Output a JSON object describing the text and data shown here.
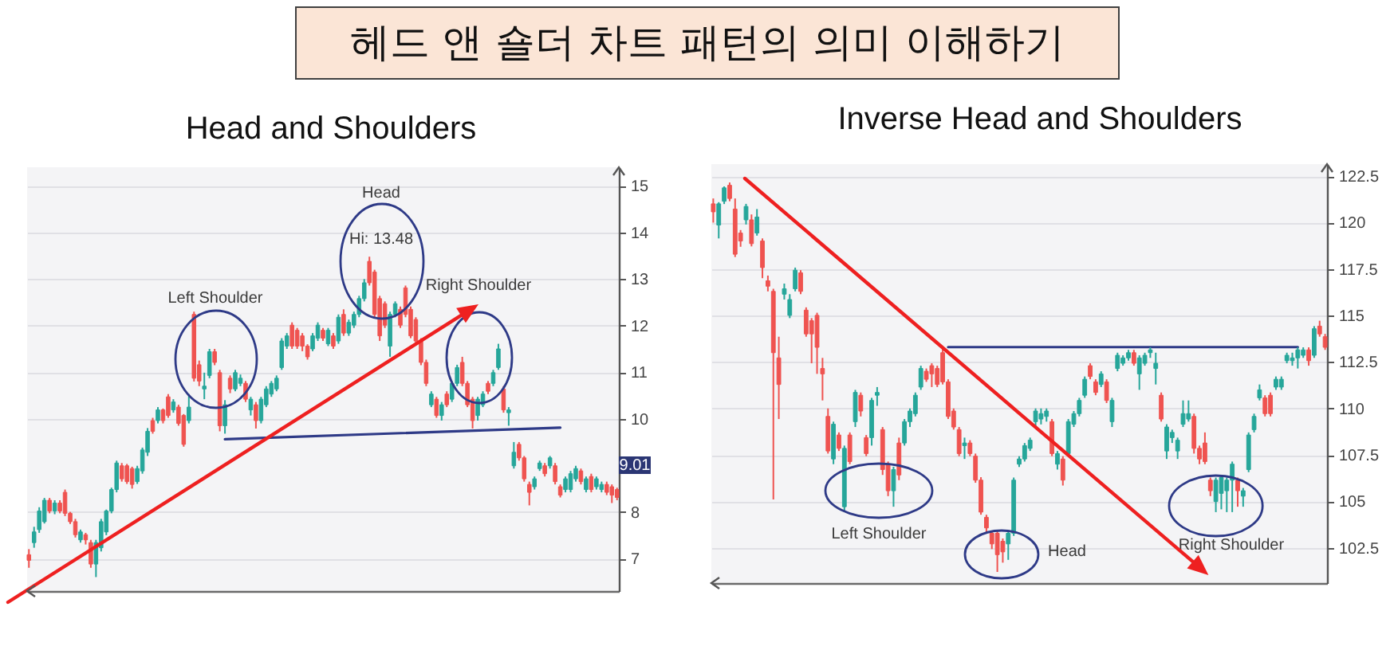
{
  "chart_data": [
    {
      "type": "other",
      "title": "헤드 앤 숄더 차트 패턴의 의미 이해하기"
    },
    {
      "type": "candlestick",
      "title": "Head and Shoulders",
      "categories": [
        null,
        null,
        null,
        null,
        null,
        null,
        null,
        null,
        null,
        null,
        null,
        null,
        null,
        null,
        null,
        null,
        null,
        null,
        null,
        null,
        null,
        null,
        null,
        null,
        null,
        null,
        null,
        null,
        null,
        null,
        null,
        null,
        null,
        null,
        null,
        null,
        null,
        null,
        null,
        null,
        null,
        null,
        null,
        null,
        null,
        null,
        null,
        null,
        null,
        null,
        null,
        null,
        null,
        null,
        null,
        null,
        null,
        null,
        null,
        null,
        null,
        null,
        null,
        null,
        null,
        null,
        null,
        null,
        null,
        null,
        null,
        null,
        null,
        null,
        null,
        null,
        null,
        null,
        null,
        null,
        null,
        null,
        null,
        null,
        null,
        null,
        null,
        null,
        null,
        null,
        null,
        null,
        null,
        null,
        null,
        null,
        null,
        null,
        null,
        null,
        null,
        null,
        null,
        null,
        null,
        null,
        null,
        null,
        null,
        null,
        null,
        null,
        null,
        null,
        null
      ],
      "ohlc": [
        [
          7.08,
          7.2,
          6.8,
          6.96
        ],
        [
          7.34,
          7.68,
          7.23,
          7.57
        ],
        [
          7.62,
          8.1,
          7.55,
          8.02
        ],
        [
          7.79,
          8.3,
          7.75,
          8.25
        ],
        [
          8.25,
          8.3,
          7.97,
          8.02
        ],
        [
          8.02,
          8.25,
          7.95,
          8.19
        ],
        [
          8.19,
          8.25,
          7.97,
          8.02
        ],
        [
          8.42,
          8.48,
          7.91,
          7.97
        ],
        [
          7.97,
          8.0,
          7.74,
          7.79
        ],
        [
          7.79,
          7.85,
          7.45,
          7.51
        ],
        [
          7.4,
          7.62,
          7.34,
          7.57
        ],
        [
          7.51,
          7.55,
          7.3,
          7.4
        ],
        [
          7.34,
          7.4,
          6.8,
          6.88
        ],
        [
          6.88,
          7.4,
          6.6,
          7.34
        ],
        [
          7.23,
          7.85,
          7.15,
          7.79
        ],
        [
          7.57,
          8.05,
          7.5,
          8.02
        ],
        [
          8.02,
          8.52,
          7.97,
          8.48
        ],
        [
          8.48,
          9.1,
          8.42,
          9.05
        ],
        [
          8.99,
          9.05,
          8.65,
          8.71
        ],
        [
          8.99,
          9.03,
          8.6,
          8.65
        ],
        [
          8.93,
          8.97,
          8.5,
          8.59
        ],
        [
          8.65,
          8.99,
          8.6,
          8.93
        ],
        [
          8.88,
          9.38,
          8.82,
          9.33
        ],
        [
          9.28,
          9.8,
          9.2,
          9.73
        ],
        [
          9.96,
          10.02,
          9.68,
          9.73
        ],
        [
          9.96,
          10.25,
          9.9,
          10.19
        ],
        [
          10.19,
          10.22,
          9.9,
          9.96
        ],
        [
          10.47,
          10.53,
          10.02,
          10.07
        ],
        [
          10.19,
          10.42,
          10.13,
          10.36
        ],
        [
          10.25,
          10.3,
          9.85,
          9.9
        ],
        [
          10.07,
          10.1,
          9.4,
          9.45
        ],
        [
          9.96,
          10.53,
          9.9,
          10.25
        ],
        [
          12.24,
          12.3,
          10.8,
          10.87
        ],
        [
          11.16,
          11.25,
          10.7,
          10.81
        ],
        [
          10.64,
          10.99,
          10.42,
          10.7
        ],
        [
          10.93,
          11.5,
          10.87,
          11.44
        ],
        [
          11.44,
          11.5,
          11.15,
          11.21
        ],
        [
          10.99,
          11.05,
          9.73,
          9.85
        ],
        [
          9.85,
          10.4,
          9.68,
          10.3
        ],
        [
          10.87,
          10.93,
          10.55,
          10.64
        ],
        [
          10.64,
          11.05,
          10.59,
          10.99
        ],
        [
          10.76,
          10.95,
          10.7,
          10.87
        ],
        [
          10.76,
          10.81,
          10.36,
          10.42
        ],
        [
          10.19,
          10.47,
          10.07,
          10.42
        ],
        [
          10.3,
          10.36,
          9.79,
          9.96
        ],
        [
          9.96,
          10.47,
          9.9,
          10.42
        ],
        [
          10.3,
          10.7,
          10.25,
          10.64
        ],
        [
          10.53,
          10.81,
          10.47,
          10.76
        ],
        [
          10.64,
          10.93,
          10.59,
          10.87
        ],
        [
          11.1,
          11.73,
          11.05,
          11.67
        ],
        [
          11.56,
          11.84,
          11.5,
          11.78
        ],
        [
          12.01,
          12.07,
          11.5,
          11.56
        ],
        [
          11.9,
          11.95,
          11.5,
          11.56
        ],
        [
          11.78,
          11.84,
          11.45,
          11.56
        ],
        [
          11.56,
          11.6,
          11.27,
          11.33
        ],
        [
          11.5,
          11.84,
          11.45,
          11.78
        ],
        [
          11.73,
          12.07,
          11.67,
          12.01
        ],
        [
          11.9,
          11.95,
          11.67,
          11.73
        ],
        [
          11.61,
          11.95,
          11.56,
          11.9
        ],
        [
          11.78,
          11.84,
          11.5,
          11.56
        ],
        [
          11.67,
          12.24,
          11.61,
          12.18
        ],
        [
          12.24,
          12.35,
          11.78,
          11.84
        ],
        [
          11.84,
          12.13,
          11.78,
          12.07
        ],
        [
          12.01,
          12.3,
          11.95,
          12.24
        ],
        [
          12.24,
          12.64,
          12.18,
          12.58
        ],
        [
          12.58,
          13.0,
          12.52,
          12.92
        ],
        [
          13.38,
          13.48,
          12.86,
          12.92
        ],
        [
          13.15,
          13.2,
          12.18,
          12.24
        ],
        [
          12.58,
          12.64,
          11.67,
          11.78
        ],
        [
          12.47,
          12.52,
          11.95,
          12.01
        ],
        [
          11.56,
          12.3,
          11.33,
          12.24
        ],
        [
          12.24,
          12.52,
          12.18,
          12.47
        ],
        [
          12.35,
          12.41,
          11.95,
          12.01
        ],
        [
          12.81,
          12.86,
          12.18,
          12.24
        ],
        [
          12.35,
          12.41,
          11.73,
          11.78
        ],
        [
          12.13,
          12.18,
          11.61,
          11.67
        ],
        [
          11.67,
          11.73,
          11.15,
          11.21
        ],
        [
          11.21,
          11.27,
          10.7,
          10.76
        ],
        [
          10.3,
          10.59,
          10.25,
          10.53
        ],
        [
          10.42,
          10.47,
          10.02,
          10.07
        ],
        [
          10.07,
          10.36,
          9.96,
          10.3
        ],
        [
          10.53,
          10.59,
          10.25,
          10.3
        ],
        [
          10.42,
          10.81,
          10.36,
          10.76
        ],
        [
          10.76,
          11.16,
          10.7,
          11.1
        ],
        [
          11.21,
          11.33,
          10.7,
          10.76
        ],
        [
          10.76,
          10.81,
          10.25,
          10.3
        ],
        [
          10.42,
          10.47,
          9.79,
          9.96
        ],
        [
          10.07,
          10.47,
          9.96,
          10.42
        ],
        [
          10.3,
          10.59,
          10.25,
          10.53
        ],
        [
          10.76,
          10.81,
          10.53,
          10.59
        ],
        [
          10.76,
          11.05,
          10.7,
          10.99
        ],
        [
          11.1,
          11.61,
          11.05,
          11.5
        ],
        [
          10.64,
          10.7,
          10.13,
          10.19
        ],
        [
          10.13,
          10.25,
          9.85,
          10.19
        ],
        [
          8.99,
          9.5,
          8.93,
          9.28
        ],
        [
          9.45,
          9.5,
          9.1,
          9.16
        ],
        [
          9.16,
          9.2,
          8.65,
          8.71
        ],
        [
          8.59,
          8.65,
          8.14,
          8.42
        ],
        [
          8.54,
          8.76,
          8.48,
          8.71
        ],
        [
          8.93,
          9.1,
          8.88,
          9.05
        ],
        [
          8.99,
          9.05,
          8.76,
          8.82
        ],
        [
          8.99,
          9.2,
          8.93,
          9.16
        ],
        [
          8.99,
          9.05,
          8.59,
          8.65
        ],
        [
          8.54,
          8.59,
          8.31,
          8.36
        ],
        [
          8.48,
          8.76,
          8.42,
          8.71
        ],
        [
          8.48,
          8.88,
          8.42,
          8.82
        ],
        [
          8.71,
          8.99,
          8.65,
          8.93
        ],
        [
          8.88,
          8.93,
          8.59,
          8.65
        ],
        [
          8.48,
          8.76,
          8.42,
          8.71
        ],
        [
          8.76,
          8.82,
          8.42,
          8.48
        ],
        [
          8.54,
          8.76,
          8.48,
          8.71
        ],
        [
          8.48,
          8.65,
          8.42,
          8.59
        ],
        [
          8.59,
          8.65,
          8.36,
          8.42
        ],
        [
          8.54,
          8.59,
          8.19,
          8.36
        ],
        [
          8.48,
          8.52,
          8.25,
          8.31
        ]
      ],
      "colors": [
        "#ef5350",
        "#26a69a",
        "#26a69a",
        "#26a69a",
        "#ef5350",
        "#26a69a",
        "#ef5350",
        "#ef5350",
        "#ef5350",
        "#ef5350",
        "#26a69a",
        "#ef5350",
        "#ef5350",
        "#26a69a",
        "#26a69a",
        "#26a69a",
        "#26a69a",
        "#26a69a",
        "#ef5350",
        "#ef5350",
        "#ef5350",
        "#26a69a",
        "#26a69a",
        "#26a69a",
        "#ef5350",
        "#26a69a",
        "#ef5350",
        "#ef5350",
        "#26a69a",
        "#ef5350",
        "#ef5350",
        "#26a69a",
        "#ef5350",
        "#ef5350",
        "#26a69a",
        "#26a69a",
        "#ef5350",
        "#ef5350",
        "#26a69a",
        "#ef5350",
        "#26a69a",
        "#26a69a",
        "#ef5350",
        "#26a69a",
        "#ef5350",
        "#26a69a",
        "#26a69a",
        "#26a69a",
        "#26a69a",
        "#26a69a",
        "#26a69a",
        "#ef5350",
        "#ef5350",
        "#ef5350",
        "#ef5350",
        "#26a69a",
        "#26a69a",
        "#ef5350",
        "#26a69a",
        "#ef5350",
        "#26a69a",
        "#ef5350",
        "#26a69a",
        "#26a69a",
        "#26a69a",
        "#26a69a",
        "#ef5350",
        "#ef5350",
        "#ef5350",
        "#ef5350",
        "#26a69a",
        "#26a69a",
        "#ef5350",
        "#ef5350",
        "#ef5350",
        "#ef5350",
        "#ef5350",
        "#ef5350",
        "#26a69a",
        "#ef5350",
        "#26a69a",
        "#ef5350",
        "#26a69a",
        "#26a69a",
        "#ef5350",
        "#ef5350",
        "#ef5350",
        "#26a69a",
        "#26a69a",
        "#ef5350",
        "#26a69a",
        "#26a69a",
        "#ef5350",
        "#26a69a",
        "#26a69a",
        "#ef5350",
        "#ef5350",
        "#ef5350",
        "#26a69a",
        "#26a69a",
        "#ef5350",
        "#26a69a",
        "#ef5350",
        "#ef5350",
        "#26a69a",
        "#26a69a",
        "#26a69a",
        "#ef5350",
        "#26a69a",
        "#ef5350",
        "#26a69a",
        "#26a69a",
        "#ef5350",
        "#ef5350",
        "#ef5350"
      ],
      "series": [
        {
          "type": "line",
          "color": "#2e3a87",
          "values": [
            null,
            null,
            null,
            null,
            null,
            null,
            null,
            null,
            null,
            null,
            null,
            null,
            null,
            null,
            null,
            null,
            null,
            null,
            null,
            null,
            null,
            null,
            null,
            null,
            null,
            null,
            null,
            null,
            null,
            null,
            null,
            null,
            null,
            null,
            null,
            null,
            null,
            null,
            9.56,
            null,
            null,
            null,
            null,
            null,
            null,
            null,
            null,
            null,
            null,
            null,
            null,
            null,
            null,
            null,
            null,
            null,
            null,
            null,
            null,
            null,
            null,
            null,
            null,
            null,
            null,
            null,
            null,
            null,
            null,
            null,
            null,
            null,
            null,
            null,
            null,
            null,
            null,
            null,
            null,
            null,
            null,
            null,
            null,
            null,
            null,
            null,
            null,
            null,
            null,
            null,
            null,
            null,
            null,
            null,
            null,
            null,
            null,
            null,
            null,
            null,
            null,
            null,
            null,
            9.81,
            null,
            null,
            null,
            null,
            null,
            null,
            null,
            null,
            null,
            null,
            null
          ]
        }
      ],
      "ylim": [
        6.3,
        15.4
      ],
      "yticks": [
        7,
        8,
        10,
        11,
        12,
        13,
        14,
        15
      ],
      "grid": "y",
      "annotations": [
        "Left Shoulder",
        "Head",
        "Hi: 13.48",
        "Right Shoulder",
        "9.01"
      ]
    },
    {
      "type": "candlestick",
      "title": "Inverse Head and Shoulders",
      "categories": [
        null,
        null,
        null,
        null,
        null,
        null,
        null,
        null,
        null,
        null,
        null,
        null,
        null,
        null,
        null,
        null,
        null,
        null,
        null,
        null,
        null,
        null,
        null,
        null,
        null,
        null,
        null,
        null,
        null,
        null,
        null,
        null,
        null,
        null,
        null,
        null,
        null,
        null,
        null,
        null,
        null,
        null,
        null,
        null,
        null,
        null,
        null,
        null,
        null,
        null,
        null,
        null,
        null,
        null,
        null,
        null,
        null,
        null,
        null,
        null,
        null,
        null,
        null,
        null,
        null,
        null,
        null,
        null,
        null,
        null,
        null,
        null,
        null,
        null,
        null,
        null,
        null,
        null,
        null,
        null,
        null,
        null,
        null,
        null,
        null,
        null,
        null,
        null,
        null,
        null,
        null,
        null,
        null,
        null,
        null,
        null,
        null,
        null,
        null,
        null,
        null,
        null,
        null,
        null,
        null,
        null,
        null,
        null,
        null,
        null,
        null,
        null,
        null
      ],
      "ohlc": [
        [
          121.01,
          121.3,
          120.0,
          120.58
        ],
        [
          119.87,
          121.1,
          119.15,
          121.01
        ],
        [
          121.15,
          121.95,
          121.0,
          121.87
        ],
        [
          122.01,
          122.16,
          121.15,
          121.3
        ],
        [
          120.73,
          121.3,
          118.15,
          118.3
        ],
        [
          119.44,
          119.6,
          118.7,
          119.01
        ],
        [
          120.15,
          121.01,
          119.9,
          120.87
        ],
        [
          120.15,
          120.44,
          118.72,
          118.87
        ],
        [
          119.44,
          120.73,
          119.3,
          120.3
        ],
        [
          119.01,
          119.15,
          117.01,
          117.58
        ],
        [
          116.87,
          117.15,
          116.3,
          116.58
        ],
        [
          116.3,
          116.44,
          105.1,
          113.0
        ],
        [
          112.72,
          113.86,
          109.43,
          111.29
        ],
        [
          116.15,
          116.72,
          115.86,
          116.44
        ],
        [
          115.01,
          116.15,
          114.86,
          115.86
        ],
        [
          116.44,
          117.58,
          116.3,
          117.44
        ],
        [
          117.3,
          117.44,
          116.15,
          116.3
        ],
        [
          115.29,
          115.44,
          113.86,
          114.01
        ],
        [
          114.72,
          114.86,
          112.43,
          114.01
        ],
        [
          115.01,
          115.15,
          111.86,
          113.29
        ],
        [
          112.15,
          112.72,
          110.43,
          111.86
        ],
        [
          109.57,
          110.0,
          107.57,
          107.71
        ],
        [
          107.28,
          109.29,
          107.0,
          109.15
        ],
        [
          108.57,
          108.71,
          107.71,
          107.85
        ],
        [
          104.71,
          108.0,
          104.42,
          107.85
        ],
        [
          108.57,
          108.71,
          107.0,
          107.14
        ],
        [
          109.29,
          111.0,
          109.0,
          110.86
        ],
        [
          110.71,
          110.86,
          109.57,
          109.86
        ],
        [
          108.43,
          108.57,
          107.43,
          107.57
        ],
        [
          108.43,
          110.57,
          108.0,
          110.43
        ],
        [
          110.71,
          111.15,
          110.14,
          110.86
        ],
        [
          108.86,
          109.0,
          106.42,
          106.71
        ],
        [
          107.0,
          107.14,
          105.28,
          105.57
        ],
        [
          105.57,
          106.86,
          104.71,
          106.71
        ],
        [
          108.14,
          108.43,
          106.14,
          106.42
        ],
        [
          108.14,
          109.43,
          108.0,
          109.29
        ],
        [
          109.29,
          110.0,
          109.0,
          109.86
        ],
        [
          109.72,
          110.86,
          109.57,
          110.71
        ],
        [
          111.15,
          112.3,
          111.0,
          112.15
        ],
        [
          112.0,
          112.15,
          111.43,
          111.57
        ],
        [
          112.3,
          112.43,
          111.15,
          111.86
        ],
        [
          112.15,
          112.3,
          111.15,
          111.29
        ],
        [
          113.0,
          113.29,
          111.29,
          111.43
        ],
        [
          111.43,
          111.57,
          109.43,
          109.57
        ],
        [
          109.86,
          110.0,
          108.86,
          109.0
        ],
        [
          108.86,
          109.0,
          107.43,
          107.57
        ],
        [
          108.0,
          108.43,
          107.28,
          108.14
        ],
        [
          108.14,
          108.29,
          107.43,
          107.57
        ],
        [
          107.43,
          107.57,
          106.0,
          106.14
        ],
        [
          106.14,
          106.3,
          104.28,
          104.42
        ],
        [
          104.14,
          104.28,
          103.3,
          103.57
        ],
        [
          103.28,
          103.43,
          102.43,
          102.71
        ],
        [
          103.28,
          103.43,
          101.2,
          102.13
        ],
        [
          102.85,
          103.0,
          101.7,
          102.28
        ],
        [
          102.71,
          103.43,
          101.85,
          103.28
        ],
        [
          103.28,
          106.28,
          103.14,
          106.14
        ],
        [
          107.0,
          107.43,
          106.85,
          107.28
        ],
        [
          107.28,
          108.14,
          107.14,
          108.0
        ],
        [
          107.85,
          108.43,
          107.71,
          108.29
        ],
        [
          109.29,
          110.0,
          109.0,
          109.86
        ],
        [
          109.43,
          110.0,
          109.14,
          109.72
        ],
        [
          109.57,
          110.0,
          109.29,
          109.86
        ],
        [
          109.29,
          109.43,
          107.43,
          107.57
        ],
        [
          107.0,
          107.71,
          106.71,
          107.57
        ],
        [
          107.28,
          107.43,
          105.85,
          106.14
        ],
        [
          107.57,
          109.43,
          107.43,
          109.29
        ],
        [
          109.15,
          109.86,
          109.0,
          109.72
        ],
        [
          109.72,
          110.57,
          109.57,
          110.43
        ],
        [
          110.71,
          111.72,
          110.57,
          111.57
        ],
        [
          112.3,
          112.43,
          111.57,
          111.72
        ],
        [
          111.43,
          111.57,
          110.71,
          110.86
        ],
        [
          111.29,
          112.0,
          111.15,
          111.86
        ],
        [
          111.43,
          111.57,
          110.29,
          110.43
        ],
        [
          109.29,
          110.57,
          109.0,
          110.43
        ],
        [
          112.15,
          113.0,
          112.0,
          112.86
        ],
        [
          112.43,
          112.86,
          112.3,
          112.72
        ],
        [
          112.72,
          113.15,
          112.57,
          113.0
        ],
        [
          113.0,
          113.15,
          112.3,
          112.43
        ],
        [
          111.86,
          112.86,
          111.0,
          112.72
        ],
        [
          112.43,
          113.0,
          112.3,
          112.86
        ],
        [
          113.0,
          113.29,
          112.72,
          113.15
        ],
        [
          112.15,
          113.0,
          111.29,
          112.43
        ],
        [
          110.71,
          110.86,
          109.29,
          109.43
        ],
        [
          107.71,
          109.15,
          107.28,
          109.0
        ],
        [
          108.43,
          108.86,
          108.14,
          108.71
        ],
        [
          107.71,
          108.43,
          107.28,
          108.29
        ],
        [
          109.15,
          110.43,
          109.0,
          109.72
        ],
        [
          109.43,
          110.43,
          109.29,
          109.72
        ],
        [
          109.57,
          109.72,
          107.57,
          107.85
        ],
        [
          107.85,
          108.0,
          107.0,
          107.28
        ],
        [
          108.14,
          108.71,
          107.0,
          107.14
        ],
        [
          106.14,
          106.28,
          105.28,
          105.57
        ],
        [
          104.99,
          106.28,
          104.42,
          106.14
        ],
        [
          105.43,
          106.42,
          104.57,
          106.28
        ],
        [
          105.57,
          106.28,
          104.42,
          106.14
        ],
        [
          106.14,
          107.14,
          104.42,
          107.0
        ],
        [
          106.14,
          106.28,
          104.71,
          105.57
        ],
        [
          105.28,
          105.72,
          104.71,
          105.57
        ],
        [
          106.71,
          108.71,
          106.57,
          108.57
        ],
        [
          108.86,
          109.72,
          108.71,
          109.57
        ],
        [
          110.57,
          111.29,
          110.43,
          111.0
        ],
        [
          110.57,
          110.71,
          109.57,
          109.72
        ],
        [
          110.71,
          110.86,
          109.57,
          109.72
        ],
        [
          111.15,
          111.72,
          111.0,
          111.57
        ],
        [
          111.15,
          111.72,
          111.0,
          111.57
        ],
        [
          112.57,
          113.0,
          112.43,
          112.86
        ],
        [
          112.57,
          113.0,
          112.3,
          112.72
        ],
        [
          112.72,
          113.29,
          112.15,
          113.15
        ],
        [
          112.86,
          113.29,
          112.72,
          113.15
        ],
        [
          113.15,
          113.29,
          112.3,
          112.57
        ],
        [
          112.86,
          114.43,
          112.72,
          114.29
        ],
        [
          114.43,
          114.72,
          113.86,
          114.01
        ],
        [
          113.86,
          114.01,
          113.15,
          113.29
        ]
      ],
      "colors": [
        "#ef5350",
        "#26a69a",
        "#26a69a",
        "#ef5350",
        "#ef5350",
        "#ef5350",
        "#26a69a",
        "#ef5350",
        "#26a69a",
        "#ef5350",
        "#ef5350",
        "#ef5350",
        "#ef5350",
        "#26a69a",
        "#26a69a",
        "#26a69a",
        "#ef5350",
        "#ef5350",
        "#ef5350",
        "#ef5350",
        "#ef5350",
        "#ef5350",
        "#26a69a",
        "#ef5350",
        "#26a69a",
        "#ef5350",
        "#26a69a",
        "#ef5350",
        "#ef5350",
        "#26a69a",
        "#26a69a",
        "#ef5350",
        "#ef5350",
        "#26a69a",
        "#ef5350",
        "#26a69a",
        "#26a69a",
        "#26a69a",
        "#26a69a",
        "#ef5350",
        "#ef5350",
        "#ef5350",
        "#ef5350",
        "#ef5350",
        "#ef5350",
        "#ef5350",
        "#26a69a",
        "#ef5350",
        "#ef5350",
        "#ef5350",
        "#ef5350",
        "#ef5350",
        "#ef5350",
        "#ef5350",
        "#26a69a",
        "#26a69a",
        "#26a69a",
        "#26a69a",
        "#26a69a",
        "#26a69a",
        "#26a69a",
        "#26a69a",
        "#ef5350",
        "#26a69a",
        "#ef5350",
        "#26a69a",
        "#26a69a",
        "#26a69a",
        "#26a69a",
        "#ef5350",
        "#ef5350",
        "#26a69a",
        "#ef5350",
        "#26a69a",
        "#26a69a",
        "#26a69a",
        "#26a69a",
        "#ef5350",
        "#26a69a",
        "#26a69a",
        "#26a69a",
        "#26a69a",
        "#ef5350",
        "#26a69a",
        "#26a69a",
        "#26a69a",
        "#26a69a",
        "#26a69a",
        "#ef5350",
        "#ef5350",
        "#ef5350",
        "#ef5350",
        "#26a69a",
        "#26a69a",
        "#26a69a",
        "#26a69a",
        "#ef5350",
        "#26a69a",
        "#26a69a",
        "#26a69a",
        "#26a69a",
        "#ef5350",
        "#ef5350",
        "#26a69a",
        "#26a69a",
        "#26a69a",
        "#26a69a",
        "#26a69a",
        "#26a69a",
        "#ef5350",
        "#26a69a",
        "#ef5350",
        "#ef5350"
      ],
      "series": [
        {
          "type": "line",
          "color": "#2e3a87",
          "values": [
            null,
            null,
            null,
            null,
            null,
            null,
            null,
            null,
            null,
            null,
            null,
            null,
            null,
            null,
            null,
            null,
            null,
            null,
            null,
            null,
            null,
            null,
            null,
            null,
            null,
            null,
            null,
            null,
            null,
            null,
            null,
            null,
            null,
            null,
            null,
            null,
            null,
            null,
            null,
            null,
            null,
            null,
            null,
            113.3,
            null,
            null,
            null,
            null,
            null,
            null,
            null,
            null,
            null,
            null,
            null,
            null,
            null,
            null,
            null,
            null,
            null,
            null,
            null,
            null,
            null,
            null,
            null,
            null,
            null,
            null,
            null,
            null,
            null,
            null,
            null,
            null,
            null,
            null,
            null,
            null,
            null,
            null,
            null,
            null,
            null,
            null,
            null,
            null,
            null,
            null,
            null,
            null,
            null,
            null,
            null,
            null,
            null,
            null,
            null,
            null,
            null,
            null,
            null,
            null,
            null,
            null,
            null,
            113.3,
            null,
            null,
            null,
            null,
            null
          ]
        }
      ],
      "ylim": [
        100.6,
        123.15
      ],
      "yticks": [
        102.5,
        105,
        107.5,
        110,
        112.5,
        115,
        117.5,
        120,
        122.5
      ],
      "grid": "y",
      "annotations": [
        "Left Shoulder",
        "Head",
        "Right Shoulder"
      ]
    }
  ]
}
